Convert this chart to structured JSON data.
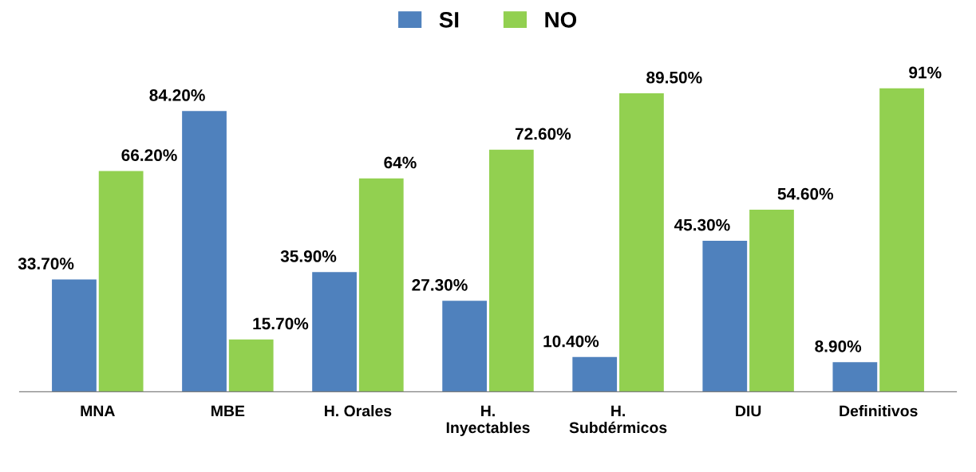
{
  "chart_data": {
    "type": "bar",
    "categories": [
      "MNA",
      "MBE",
      "H. Orales",
      "H.\nInyectables",
      "H.\nSubdérmicos",
      "DIU",
      "Definitivos"
    ],
    "series": [
      {
        "name": "SI",
        "color": "#4f81bd",
        "values": [
          33.7,
          84.2,
          35.9,
          27.3,
          10.4,
          45.3,
          8.9
        ],
        "value_labels": [
          "33.70%",
          "84.20%",
          "35.90%",
          "27.30%",
          "10.40%",
          "45.30%",
          "8.90%"
        ]
      },
      {
        "name": "NO",
        "color": "#92d050",
        "values": [
          66.2,
          15.7,
          64,
          72.6,
          89.5,
          54.6,
          91
        ],
        "value_labels": [
          "66.20%",
          "15.70%",
          "64%",
          "72.60%",
          "89.50%",
          "54.60%",
          "91%"
        ]
      }
    ],
    "legend": "top",
    "grid": false,
    "tick_labels": "x"
  }
}
